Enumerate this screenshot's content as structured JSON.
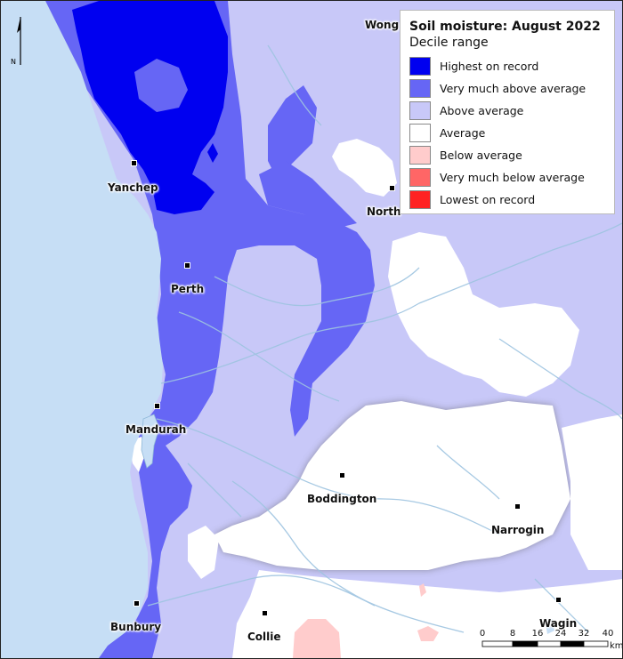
{
  "legend": {
    "title": "Soil moisture: August 2022",
    "subtitle": "Decile range",
    "items": [
      {
        "label": "Highest on record",
        "color": "#0000f0"
      },
      {
        "label": "Very much above average",
        "color": "#6666f5"
      },
      {
        "label": "Above average",
        "color": "#c8c8f8"
      },
      {
        "label": "Average",
        "color": "#ffffff"
      },
      {
        "label": "Below average",
        "color": "#ffcccc"
      },
      {
        "label": "Very much below average",
        "color": "#ff6666"
      },
      {
        "label": "Lowest on record",
        "color": "#ff2222"
      }
    ]
  },
  "towns": {
    "wong": "Wong",
    "yanchep": "Yanchep",
    "north": "North",
    "perth": "Perth",
    "mandurah": "Mandurah",
    "boddington": "Boddington",
    "narrogin": "Narrogin",
    "bunbury": "Bunbury",
    "collie": "Collie",
    "wagin": "Wagin"
  },
  "north_arrow": {
    "label": "N"
  },
  "scale": {
    "ticks": [
      "0",
      "8",
      "16",
      "24",
      "32",
      "40"
    ],
    "unit": "km"
  },
  "colors": {
    "ocean": "#c6def5",
    "highest": "#0000f0",
    "very_much_above": "#6666f5",
    "above": "#c8c8f8",
    "average": "#ffffff",
    "below": "#ffcccc",
    "river": "#9ec4e0"
  }
}
